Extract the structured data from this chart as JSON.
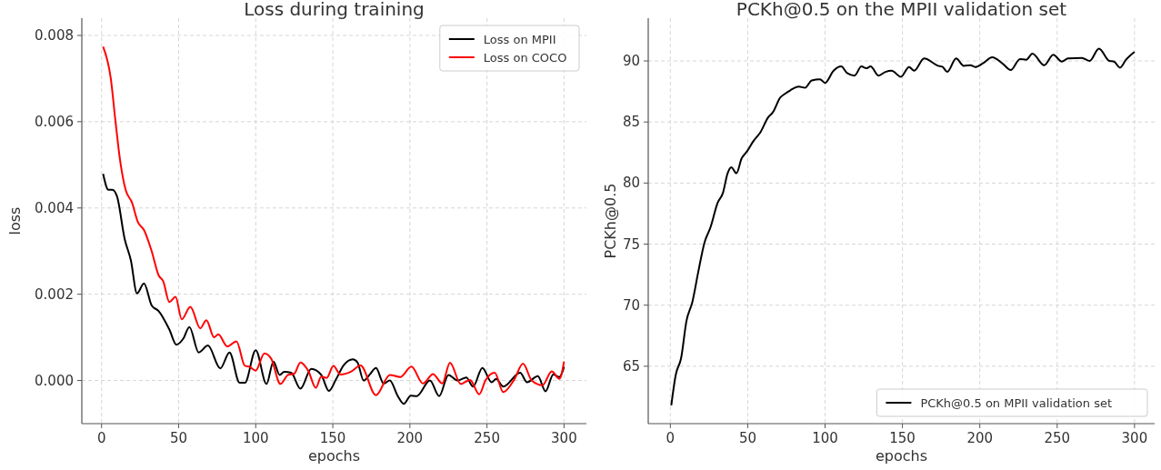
{
  "chart_data": [
    {
      "type": "line",
      "title": "Loss during training",
      "xlabel": "epochs",
      "ylabel": "loss",
      "xlim": [
        -12.8,
        314.5
      ],
      "ylim": [
        -0.001,
        0.0084
      ],
      "xticks": [
        0,
        50,
        100,
        150,
        200,
        250,
        300
      ],
      "yticks": [
        {
          "value": 0,
          "label": "0.000"
        },
        {
          "value": 0.002,
          "label": "0.002"
        },
        {
          "value": 0.004,
          "label": "0.004"
        },
        {
          "value": 0.006,
          "label": "0.006"
        },
        {
          "value": 0.008,
          "label": "0.008"
        }
      ],
      "grid": true,
      "legend": "top right",
      "series": [
        {
          "name": "Loss on MPII",
          "color": "#000000",
          "x": [
            1,
            4.5,
            7,
            10,
            15,
            19,
            23,
            27.5,
            32.5,
            37,
            44,
            48.5,
            53,
            57,
            63,
            69,
            77,
            83,
            89.5,
            93,
            100,
            107,
            111.5,
            115.5,
            118.5,
            123,
            129,
            136,
            142.5,
            147.5,
            152,
            157,
            163,
            166,
            170,
            174,
            178,
            183,
            187,
            192,
            196,
            200.6,
            204.5,
            213,
            219,
            225,
            231,
            236.6,
            241,
            247,
            253,
            256,
            260.6,
            271.5,
            276,
            283,
            288,
            293,
            297,
            300
          ],
          "values": [
            0.00479,
            0.00442,
            0.00442,
            0.00427,
            0.00328,
            0.00279,
            0.00202,
            0.00225,
            0.00174,
            0.00161,
            0.00118,
            0.00083,
            0.00097,
            0.00124,
            0.00065,
            0.00081,
            0.00028,
            0.00065,
            -5e-05,
            -5e-05,
            0.0007,
            -8e-05,
            0.00044,
            0.00013,
            0.0002,
            0.00018,
            -0.00019,
            0.00027,
            0.00013,
            -0.00024,
            2e-05,
            0.00035,
            0.00049,
            0.00042,
            0,
            0.00014,
            0.00029,
            -7e-05,
            0,
            -0.00035,
            -0.00054,
            -0.00035,
            -0.00036,
            0,
            -0.00036,
            0.00013,
            0,
            7e-05,
            -0.00014,
            0.00029,
            -4e-05,
            4e-05,
            -0.00014,
            0.00018,
            -4e-05,
            0.0001,
            -0.00025,
            0.00014,
            8e-05,
            0.00032
          ]
        },
        {
          "name": "Loss on COCO",
          "color": "#ff0000",
          "x": [
            1,
            6,
            9,
            12,
            15.7,
            19.7,
            23.6,
            27.5,
            32.5,
            37,
            40,
            44,
            48,
            52,
            57.6,
            64,
            68,
            73,
            75.7,
            81.6,
            87.5,
            93,
            96,
            100,
            105.6,
            110,
            116,
            121,
            125,
            129,
            134,
            139,
            142.5,
            146,
            150.4,
            155,
            162,
            168,
            178,
            187,
            193.7,
            201,
            208.5,
            215,
            221,
            226,
            233,
            239,
            245,
            249,
            255,
            260.6,
            267.5,
            273.4,
            279,
            286,
            292,
            297,
            300
          ],
          "values": [
            0.00774,
            0.007,
            0.00602,
            0.00511,
            0.00441,
            0.00413,
            0.00367,
            0.00349,
            0.003,
            0.00244,
            0.0023,
            0.00182,
            0.00194,
            0.00142,
            0.00171,
            0.00121,
            0.0014,
            0.001,
            0.00107,
            0.00079,
            0.00091,
            0.00034,
            0.00032,
            0.00023,
            0.00063,
            0.00051,
            -8e-05,
            0.00013,
            0.00016,
            0.00042,
            0.00023,
            -0.00017,
            9e-05,
            6e-05,
            0.00034,
            0.00014,
            0.00021,
            0.00035,
            -0.00034,
            0.00013,
            8e-05,
            0.00032,
            -7e-05,
            0.00015,
            -7e-05,
            0.00041,
            -8e-05,
            1e-05,
            -0.00032,
            0,
            0.00018,
            -0.00027,
            1e-05,
            0.00039,
            0,
            -0.00011,
            0.00021,
            4e-05,
            0.00044
          ]
        }
      ]
    },
    {
      "type": "line",
      "title": "PCKh@0.5 on the MPII validation set",
      "xlabel": "epochs",
      "ylabel": "PCKh@0.5",
      "xlim": [
        -14.3,
        313
      ],
      "ylim": [
        60.3,
        93.5
      ],
      "xticks": [
        0,
        50,
        100,
        150,
        200,
        250,
        300
      ],
      "yticks": [
        65,
        70,
        75,
        80,
        85,
        90
      ],
      "grid": true,
      "legend": "bottom right",
      "series": [
        {
          "name": "PCKh@0.5 on MPII validation set",
          "color": "#000000",
          "x": [
            0.6,
            3.5,
            7,
            10.4,
            14.3,
            18,
            22,
            26,
            30.6,
            34,
            37,
            39.4,
            42.7,
            46,
            49.6,
            53.5,
            58.4,
            63.3,
            66.3,
            71,
            74,
            77.6,
            83,
            87,
            91.4,
            96.7,
            100,
            105.5,
            110.4,
            114.3,
            119,
            123.5,
            126.7,
            129.4,
            134.5,
            139,
            143,
            149,
            154.3,
            157.6,
            164,
            173,
            176,
            179,
            184.7,
            189.6,
            194,
            197,
            202,
            208,
            215,
            220,
            226,
            230,
            234,
            241.6,
            247.5,
            253,
            257,
            266,
            271,
            277,
            283.7,
            286.7,
            290.6,
            294.5,
            300
          ],
          "values": [
            61.8,
            64.3,
            65.7,
            68.7,
            70.3,
            72.7,
            75.1,
            76.4,
            78.4,
            79.2,
            80.8,
            81.3,
            80.8,
            82,
            82.6,
            83.4,
            84.2,
            85.4,
            85.8,
            87,
            87.3,
            87.6,
            87.9,
            87.8,
            88.4,
            88.5,
            88.2,
            89.2,
            89.55,
            89,
            88.8,
            89.55,
            89.4,
            89.55,
            88.8,
            89.1,
            89.2,
            88.7,
            89.5,
            89.2,
            90.2,
            89.6,
            89.5,
            89.1,
            90.2,
            89.6,
            89.65,
            89.5,
            89.8,
            90.3,
            89.75,
            89.25,
            90.15,
            90.1,
            90.6,
            89.65,
            90.5,
            89.95,
            90.2,
            90.25,
            90,
            91,
            90,
            89.95,
            89.45,
            90.1,
            90.75
          ]
        }
      ]
    }
  ]
}
